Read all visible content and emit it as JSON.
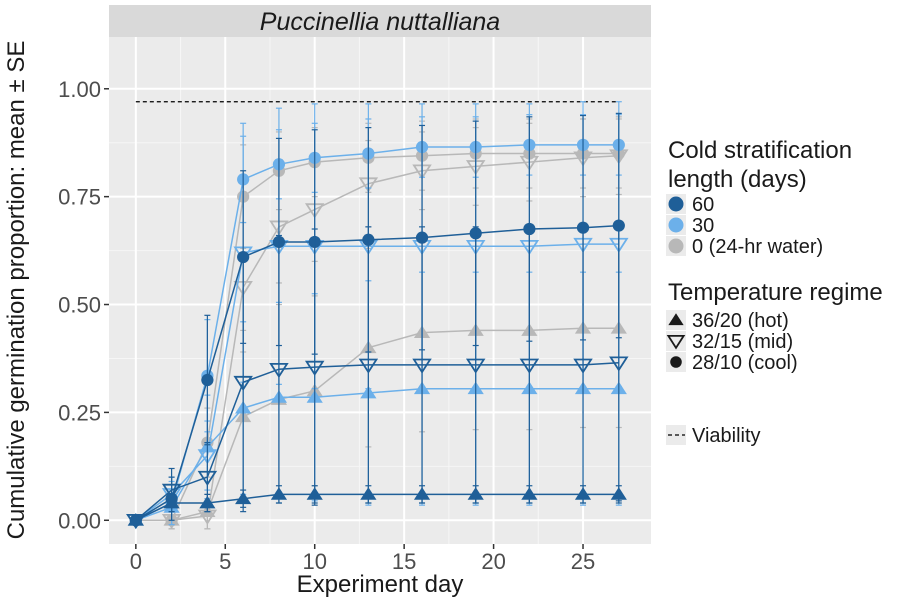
{
  "chart_data": {
    "type": "line",
    "title": "Puccinellia nuttalliana",
    "xlabel": "Experiment day",
    "ylabel": "Cumulative germination proportion: mean ± SE",
    "xlim": [
      -1.5,
      28.8
    ],
    "ylim": [
      -0.055,
      1.12
    ],
    "x_ticks": [
      0,
      5,
      10,
      15,
      20,
      25
    ],
    "y_ticks": [
      0.0,
      0.25,
      0.5,
      0.75,
      1.0
    ],
    "y_tick_labels": [
      "0.00",
      "0.25",
      "0.50",
      "0.75",
      "1.00"
    ],
    "days": [
      0,
      2,
      4,
      6,
      8,
      10,
      13,
      16,
      19,
      22,
      25,
      27
    ],
    "viability": {
      "value": 0.97,
      "x_range": [
        0,
        27
      ],
      "label": "Viability"
    },
    "legend": {
      "cold_title": [
        "Cold stratification",
        "length (days)"
      ],
      "cold_items": [
        {
          "label": "60",
          "color": "#1f5f98"
        },
        {
          "label": "30",
          "color": "#6cb0ea"
        },
        {
          "label": "0 (24-hr water)",
          "color": "#b8b8b8"
        }
      ],
      "temp_title": "Temperature regime",
      "temp_items": [
        {
          "label": "36/20 (hot)",
          "shape": "triangle-up"
        },
        {
          "label": "32/15 (mid)",
          "shape": "triangle-down-open"
        },
        {
          "label": "28/10 (cool)",
          "shape": "circle"
        }
      ],
      "viability_label": "Viability"
    },
    "series": [
      {
        "name": "0 cool",
        "cold": "0 (24-hr water)",
        "temp": "28/10 (cool)",
        "color": "#b8b8b8",
        "shape": "circle",
        "values": [
          0.0,
          0.0,
          0.18,
          0.75,
          0.81,
          0.83,
          0.84,
          0.845,
          0.85,
          0.85,
          0.85,
          0.85
        ],
        "se": [
          0.01,
          0.02,
          0.08,
          0.12,
          0.09,
          0.08,
          0.08,
          0.08,
          0.08,
          0.08,
          0.08,
          0.08
        ]
      },
      {
        "name": "0 mid",
        "cold": "0 (24-hr water)",
        "temp": "32/15 (mid)",
        "color": "#b8b8b8",
        "shape": "triangle-down-open",
        "values": [
          0.0,
          0.0,
          0.01,
          0.54,
          0.68,
          0.72,
          0.78,
          0.81,
          0.82,
          0.83,
          0.84,
          0.845
        ],
        "se": [
          0.01,
          0.02,
          0.04,
          0.15,
          0.13,
          0.12,
          0.1,
          0.09,
          0.09,
          0.09,
          0.09,
          0.09
        ]
      },
      {
        "name": "0 hot",
        "cold": "0 (24-hr water)",
        "temp": "36/20 (hot)",
        "color": "#b8b8b8",
        "shape": "triangle-up",
        "values": [
          0.0,
          0.0,
          0.02,
          0.24,
          0.28,
          0.3,
          0.4,
          0.435,
          0.44,
          0.44,
          0.445,
          0.445
        ],
        "se": [
          0.01,
          0.02,
          0.04,
          0.2,
          0.22,
          0.22,
          0.23,
          0.23,
          0.23,
          0.23,
          0.23,
          0.23
        ]
      },
      {
        "name": "30 cool",
        "cold": "30",
        "temp": "28/10 (cool)",
        "color": "#6cb0ea",
        "shape": "circle",
        "values": [
          0.0,
          0.04,
          0.335,
          0.79,
          0.825,
          0.84,
          0.85,
          0.865,
          0.865,
          0.87,
          0.87,
          0.87
        ],
        "se": [
          0.01,
          0.05,
          0.13,
          0.1,
          0.08,
          0.08,
          0.08,
          0.07,
          0.07,
          0.07,
          0.07,
          0.07
        ]
      },
      {
        "name": "30 mid",
        "cold": "30",
        "temp": "32/15 (mid)",
        "color": "#6cb0ea",
        "shape": "triangle-down-open",
        "values": [
          0.0,
          0.06,
          0.15,
          0.62,
          0.635,
          0.635,
          0.635,
          0.635,
          0.635,
          0.635,
          0.64,
          0.64
        ],
        "se": [
          0.01,
          0.04,
          0.08,
          0.3,
          0.32,
          0.33,
          0.33,
          0.33,
          0.33,
          0.33,
          0.33,
          0.33
        ]
      },
      {
        "name": "30 hot",
        "cold": "30",
        "temp": "36/20 (hot)",
        "color": "#6cb0ea",
        "shape": "triangle-up",
        "values": [
          0.0,
          0.03,
          0.17,
          0.26,
          0.285,
          0.285,
          0.295,
          0.305,
          0.305,
          0.305,
          0.305,
          0.305
        ],
        "se": [
          0.01,
          0.04,
          0.12,
          0.2,
          0.22,
          0.24,
          0.26,
          0.27,
          0.27,
          0.27,
          0.27,
          0.27
        ]
      },
      {
        "name": "60 cool",
        "cold": "60",
        "temp": "28/10 (cool)",
        "color": "#1f5f98",
        "shape": "circle",
        "values": [
          0.0,
          0.05,
          0.325,
          0.61,
          0.645,
          0.645,
          0.65,
          0.655,
          0.665,
          0.675,
          0.678,
          0.683
        ],
        "se": [
          0.01,
          0.05,
          0.15,
          0.2,
          0.24,
          0.26,
          0.26,
          0.26,
          0.26,
          0.26,
          0.26,
          0.26
        ]
      },
      {
        "name": "60 mid",
        "cold": "60",
        "temp": "32/15 (mid)",
        "color": "#1f5f98",
        "shape": "triangle-down-open",
        "values": [
          0.0,
          0.07,
          0.1,
          0.32,
          0.35,
          0.355,
          0.36,
          0.36,
          0.36,
          0.36,
          0.36,
          0.365
        ],
        "se": [
          0.01,
          0.05,
          0.08,
          0.3,
          0.31,
          0.32,
          0.32,
          0.32,
          0.32,
          0.32,
          0.32,
          0.32
        ]
      },
      {
        "name": "60 hot",
        "cold": "60",
        "temp": "36/20 (hot)",
        "color": "#1f5f98",
        "shape": "triangle-up",
        "values": [
          0.0,
          0.04,
          0.04,
          0.05,
          0.06,
          0.06,
          0.06,
          0.06,
          0.06,
          0.06,
          0.06,
          0.06
        ],
        "se": [
          0.01,
          0.02,
          0.02,
          0.02,
          0.02,
          0.02,
          0.02,
          0.02,
          0.02,
          0.02,
          0.02,
          0.02
        ]
      }
    ]
  }
}
